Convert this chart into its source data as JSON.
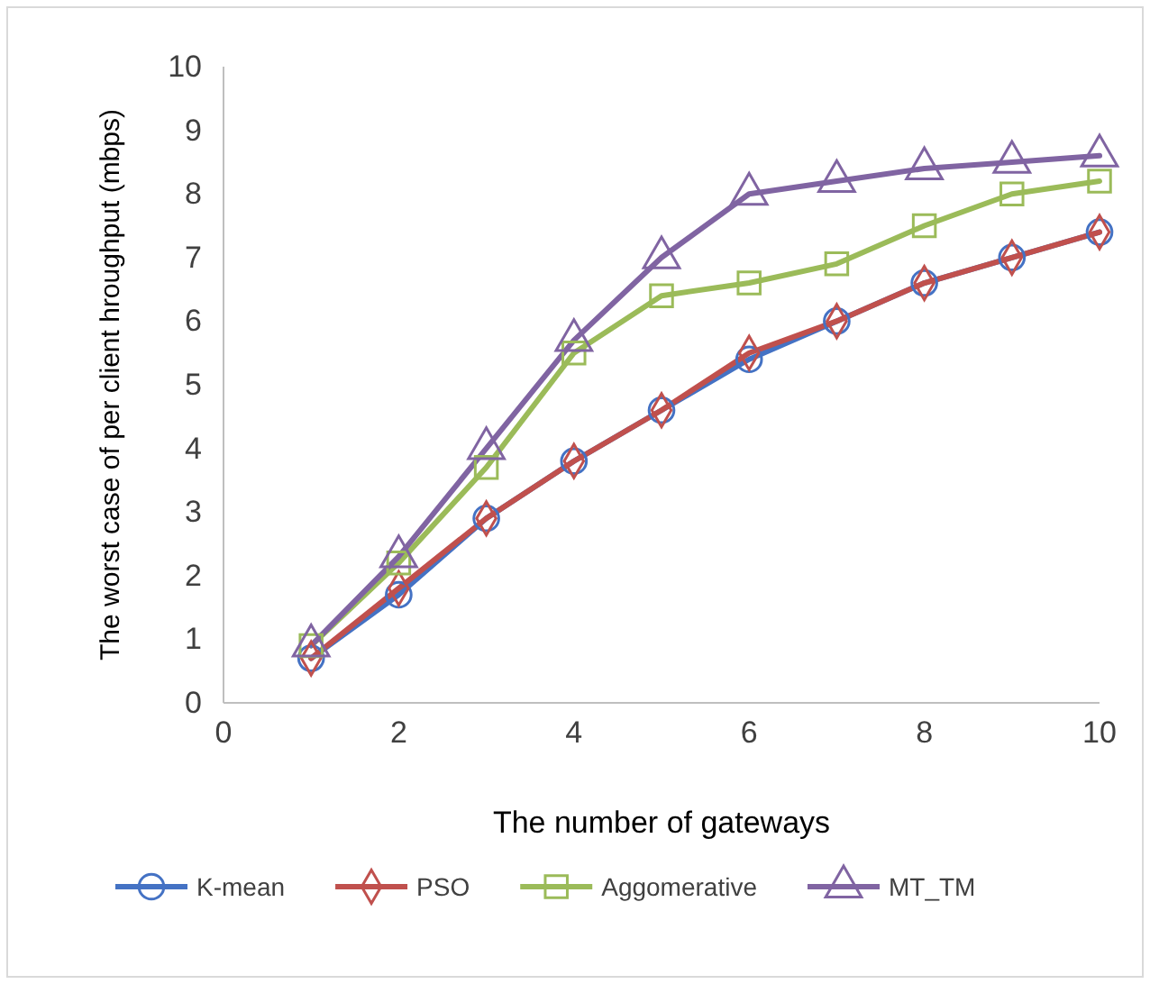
{
  "chart_data": {
    "type": "line",
    "xlabel": "The number of gateways",
    "ylabel": "The worst case of per client  hroughput (mbps)",
    "x": [
      1,
      2,
      3,
      4,
      5,
      6,
      7,
      8,
      9,
      10
    ],
    "xlim": [
      0,
      10
    ],
    "xticks": [
      0,
      2,
      4,
      6,
      8,
      10
    ],
    "ylim": [
      0,
      10
    ],
    "yticks": [
      0,
      1,
      2,
      3,
      4,
      5,
      6,
      7,
      8,
      9,
      10
    ],
    "legend": "bottom",
    "grid": false,
    "line_style": "solid",
    "series": [
      {
        "name": "K-mean",
        "color": "#4472c4",
        "marker": "circle",
        "values": [
          0.7,
          1.7,
          2.9,
          3.8,
          4.6,
          5.4,
          6.0,
          6.6,
          7.0,
          7.4
        ]
      },
      {
        "name": "PSO",
        "color": "#c0504d",
        "marker": "diamond",
        "values": [
          0.7,
          1.8,
          2.9,
          3.8,
          4.6,
          5.5,
          6.0,
          6.6,
          7.0,
          7.4
        ]
      },
      {
        "name": "Aggomerative",
        "color": "#9bbb59",
        "marker": "square",
        "values": [
          0.9,
          2.2,
          3.7,
          5.5,
          6.4,
          6.6,
          6.9,
          7.5,
          8.0,
          8.2
        ]
      },
      {
        "name": "MT_TM",
        "color": "#8064a2",
        "marker": "triangle",
        "values": [
          0.9,
          2.3,
          4.0,
          5.7,
          7.0,
          8.0,
          8.2,
          8.4,
          8.5,
          8.6
        ]
      }
    ]
  }
}
